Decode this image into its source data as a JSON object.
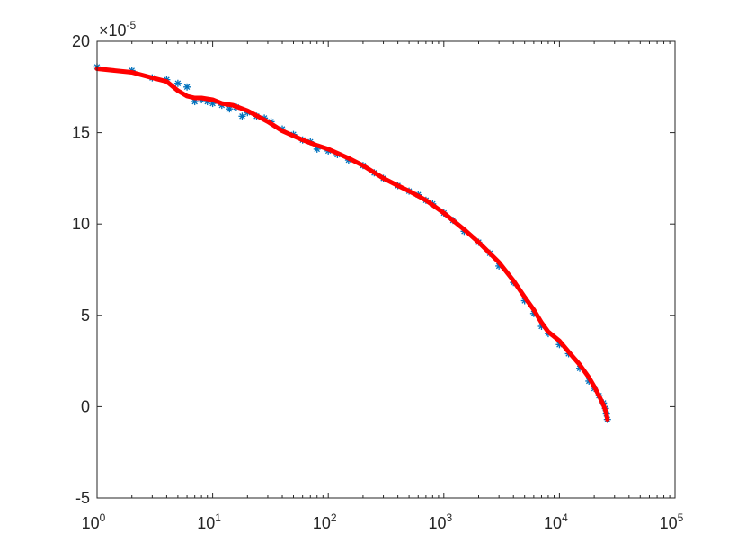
{
  "chart_data": {
    "type": "scatter",
    "xscale": "log",
    "xlim": [
      1,
      100000
    ],
    "ylim": [
      -5e-05,
      0.0002
    ],
    "grid": false,
    "legend": "none",
    "axis_multiplier": {
      "base": "×10",
      "exponent": "-5"
    },
    "x_ticks": [
      {
        "value": 1,
        "base": "10",
        "exp": "0"
      },
      {
        "value": 10,
        "base": "10",
        "exp": "1"
      },
      {
        "value": 100,
        "base": "10",
        "exp": "2"
      },
      {
        "value": 1000,
        "base": "10",
        "exp": "3"
      },
      {
        "value": 10000,
        "base": "10",
        "exp": "4"
      },
      {
        "value": 100000,
        "base": "10",
        "exp": "5"
      }
    ],
    "y_ticks": [
      {
        "value": -5e-05,
        "label": "-5"
      },
      {
        "value": 0,
        "label": "0"
      },
      {
        "value": 5e-05,
        "label": "5"
      },
      {
        "value": 0.0001,
        "label": "10"
      },
      {
        "value": 0.00015,
        "label": "15"
      },
      {
        "value": 0.0002,
        "label": "20"
      }
    ],
    "series": [
      {
        "style": "markers",
        "marker": "asterisk",
        "color": "#0072BD",
        "x": [
          1,
          2,
          3,
          4,
          5,
          6,
          7,
          8,
          9,
          10,
          12,
          14,
          16,
          18,
          20,
          24,
          28,
          32,
          40,
          50,
          60,
          70,
          80,
          100,
          120,
          150,
          200,
          250,
          300,
          400,
          500,
          600,
          700,
          800,
          1000,
          1200,
          1500,
          2000,
          2500,
          3000,
          4000,
          5000,
          6000,
          7000,
          8000,
          10000,
          12000,
          15000,
          18000,
          20000,
          22000,
          24000,
          25000,
          25500,
          26000
        ],
        "y": [
          0.000186,
          0.000184,
          0.00018,
          0.000179,
          0.000177,
          0.000175,
          0.000167,
          0.000168,
          0.000167,
          0.000166,
          0.000165,
          0.000163,
          0.000164,
          0.000159,
          0.000161,
          0.000159,
          0.000158,
          0.000156,
          0.000152,
          0.000149,
          0.000146,
          0.000145,
          0.000141,
          0.00014,
          0.000138,
          0.000135,
          0.000132,
          0.000128,
          0.000125,
          0.000121,
          0.000118,
          0.000116,
          0.000113,
          0.000111,
          0.000106,
          0.000102,
          9.6e-05,
          9e-05,
          8.4e-05,
          7.7e-05,
          6.8e-05,
          5.8e-05,
          5.1e-05,
          4.4e-05,
          4e-05,
          3.4e-05,
          2.9e-05,
          2.1e-05,
          1.4e-05,
          1e-05,
          6e-06,
          2e-06,
          -1e-06,
          -4e-06,
          -7e-06
        ]
      },
      {
        "style": "line",
        "color": "#FF0000",
        "x": [
          1,
          2,
          3,
          4,
          5,
          6,
          7,
          8,
          10,
          12,
          15,
          20,
          30,
          40,
          60,
          80,
          100,
          150,
          200,
          300,
          400,
          500,
          700,
          1000,
          1500,
          2000,
          3000,
          4000,
          5000,
          6000,
          7000,
          8000,
          10000,
          12000,
          15000,
          18000,
          20000,
          22000,
          24000,
          25000,
          25500,
          26000
        ],
        "y": [
          0.000185,
          0.000183,
          0.00018,
          0.000178,
          0.000173,
          0.00017,
          0.000169,
          0.000169,
          0.000168,
          0.000166,
          0.000165,
          0.000162,
          0.000156,
          0.000151,
          0.000146,
          0.000143,
          0.000141,
          0.000136,
          0.000132,
          0.000125,
          0.000121,
          0.000118,
          0.000113,
          0.000106,
          9.7e-05,
          9e-05,
          7.9e-05,
          6.9e-05,
          6e-05,
          5.3e-05,
          4.6e-05,
          4.1e-05,
          3.6e-05,
          3e-05,
          2.3e-05,
          1.6e-05,
          1.1e-05,
          6e-06,
          1e-06,
          -2e-06,
          -4e-06,
          -7e-06
        ]
      }
    ]
  }
}
